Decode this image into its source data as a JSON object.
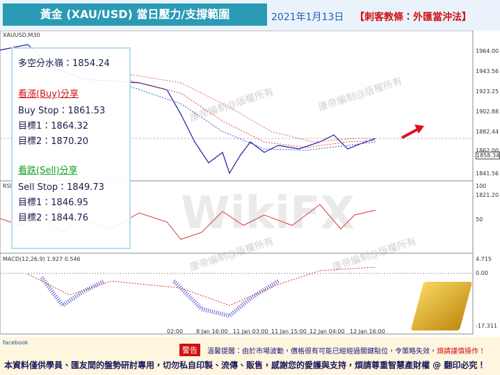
{
  "header": {
    "title": "黃金 (XAU/USD) 當日壓力/支撐範圍",
    "date": "2021年1月13日",
    "brand": "【刺客教條：外匯當沖法】"
  },
  "chart": {
    "symbol": "XAUUSD,M30",
    "rsi_label": "RSI",
    "macd_label": "MACD(12,26,9) 1.927 0.546",
    "price_axis": [
      "1964.00",
      "1943.56",
      "1923.25",
      "1902.88",
      "1882.44",
      "1862.00",
      "1858.34",
      "1841.56",
      "1821.20"
    ],
    "rsi_axis": [
      "100",
      "50"
    ],
    "macd_axis": [
      "4.715",
      "0.00",
      "-17.311"
    ],
    "time_axis": [
      "02:00",
      "8 Jan 16:00",
      "11 Jan 03:00",
      "11 Jan 15:00",
      "12 Jan 04:00",
      "12 Jan 16:00"
    ],
    "watermark": "康帝編制@版權所有",
    "logo": "WikiFX"
  },
  "panel": {
    "pivot": "多空分水嶺：1854.24",
    "buy_title": "看漲(Buy)分享",
    "buy_stop": "Buy Stop：1861.53",
    "buy_t1": "目標1：1864.32",
    "buy_t2": "目標2：1870.20",
    "sell_title": "看跌(Sell)分享",
    "sell_stop": "Sell Stop：1849.73",
    "sell_t1": "目標1：1846.95",
    "sell_t2": "目標2：1844.76"
  },
  "footer": {
    "warning": "警告",
    "notice": "溫馨提醒：由於市場波動，價格很有可能已經經過關鍵點位，令策略失效，",
    "notice_red": "煩請謹慎操作！",
    "copyright": "本資料僅供學員、匯友間的盤勢研討專用，切勿私自印製、流傳、販售，感謝您的愛護與支持，煩請尊重智慧產財權 @ 翻印必究！",
    "social": "facebook"
  }
}
